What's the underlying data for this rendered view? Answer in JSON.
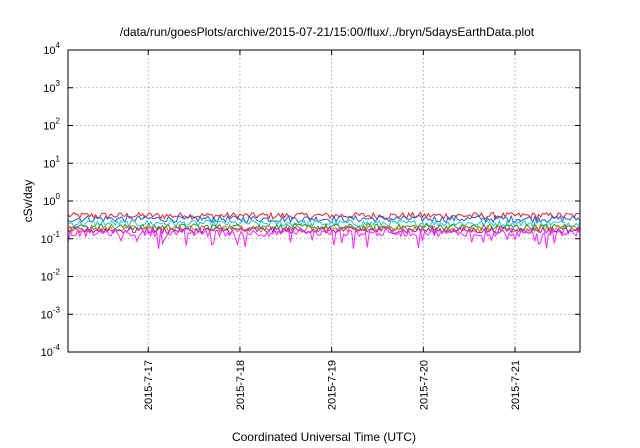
{
  "chart_data": {
    "type": "line",
    "title": "/data/run/goesPlots/archive/2015-07-21/15:00/flux/../bryn/5daysEarthData.plot",
    "xlabel": "Coordinated Universal Time (UTC)",
    "ylabel": "cSv/day",
    "y_scale": "log",
    "ylim": [
      0.0001,
      10000
    ],
    "y_ticks": [
      {
        "value": 0.0001,
        "base": "10",
        "exp": "-4"
      },
      {
        "value": 0.001,
        "base": "10",
        "exp": "-3"
      },
      {
        "value": 0.01,
        "base": "10",
        "exp": "-2"
      },
      {
        "value": 0.1,
        "base": "10",
        "exp": "-1"
      },
      {
        "value": 1,
        "base": "10",
        "exp": "0"
      },
      {
        "value": 10,
        "base": "10",
        "exp": "1"
      },
      {
        "value": 100,
        "base": "10",
        "exp": "2"
      },
      {
        "value": 1000,
        "base": "10",
        "exp": "3"
      },
      {
        "value": 10000,
        "base": "10",
        "exp": "4"
      }
    ],
    "xlim": [
      "2015-07-16T03:00",
      "2015-07-21T17:00"
    ],
    "x_ticks": [
      "2015-7-17",
      "2015-7-18",
      "2015-7-19",
      "2015-7-20",
      "2015-7-21"
    ],
    "x_tick_dates": [
      "2015-07-17",
      "2015-07-18",
      "2015-07-19",
      "2015-07-20",
      "2015-07-21"
    ],
    "grid": true,
    "legend": "none",
    "series": [
      {
        "color": "#e8202a",
        "level": 0.4
      },
      {
        "color": "#2060d8",
        "level": 0.33
      },
      {
        "color": "#1ec8d8",
        "level": 0.25
      },
      {
        "color": "#20a020",
        "level": 0.2
      },
      {
        "color": "#e07010",
        "level": 0.18
      },
      {
        "color": "#a020c0",
        "level": 0.165
      },
      {
        "color": "#ff20ff",
        "level": 0.14
      }
    ]
  }
}
